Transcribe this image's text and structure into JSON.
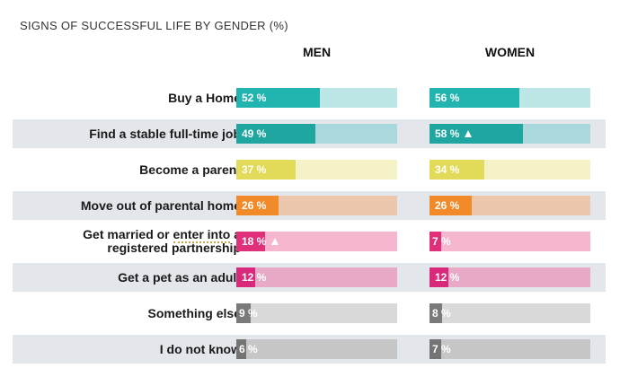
{
  "chart_data": {
    "type": "bar",
    "title": "SIGNS OF SUCCESSFUL LIFE BY GENDER (%)",
    "value_suffix": "%",
    "series": [
      {
        "name": "MEN",
        "values": [
          52,
          49,
          37,
          26,
          18,
          12,
          9,
          6
        ]
      },
      {
        "name": "WOMEN",
        "values": [
          56,
          58,
          34,
          26,
          7,
          12,
          8,
          7
        ]
      }
    ],
    "categories": [
      "Buy a Home",
      "Find a stable full-time job",
      "Become a parent",
      "Move out of parental home",
      "Get married or enter into a registered partnership",
      "Get a pet as an adult",
      "Something else",
      "I do not know"
    ],
    "category_lines": [
      [
        "Buy a Home"
      ],
      [
        "Find a stable full-time job"
      ],
      [
        "Become a parent"
      ],
      [
        "Move out of parental home"
      ],
      [
        "Get married or enter into a",
        "registered partnership"
      ],
      [
        "Get a pet as an adult"
      ],
      [
        "Something else"
      ],
      [
        "I do not know"
      ]
    ],
    "significant_up": {
      "MEN": [
        false,
        false,
        false,
        false,
        true,
        false,
        false,
        false
      ],
      "WOMEN": [
        false,
        true,
        false,
        false,
        false,
        false,
        false,
        false
      ]
    },
    "xlim": [
      0,
      100
    ],
    "colors": {
      "fill": [
        "#22b5b0",
        "#22b5b0",
        "#e2db5a",
        "#f28a2a",
        "#e0307a",
        "#e0307a",
        "#7a7a7a",
        "#7a7a7a"
      ],
      "track": [
        "#bde7e7",
        "#bde7e7",
        "#f4f2c6",
        "#f6cfb0",
        "#f6b6cf",
        "#f6b6cf",
        "#d9d9d9",
        "#d9d9d9"
      ],
      "fill_shaded": [
        "#22b5b0",
        "#1fa6a1",
        "#e2db5a",
        "#f28a2a",
        "#e0307a",
        "#d8297a",
        "#7a7a7a",
        "#747474"
      ],
      "track_shaded": [
        "#bde7e7",
        "#a9d9dc",
        "#f4f2c6",
        "#ebc7ae",
        "#f6b6cf",
        "#e7a9c6",
        "#d9d9d9",
        "#c6c6c6"
      ]
    }
  }
}
